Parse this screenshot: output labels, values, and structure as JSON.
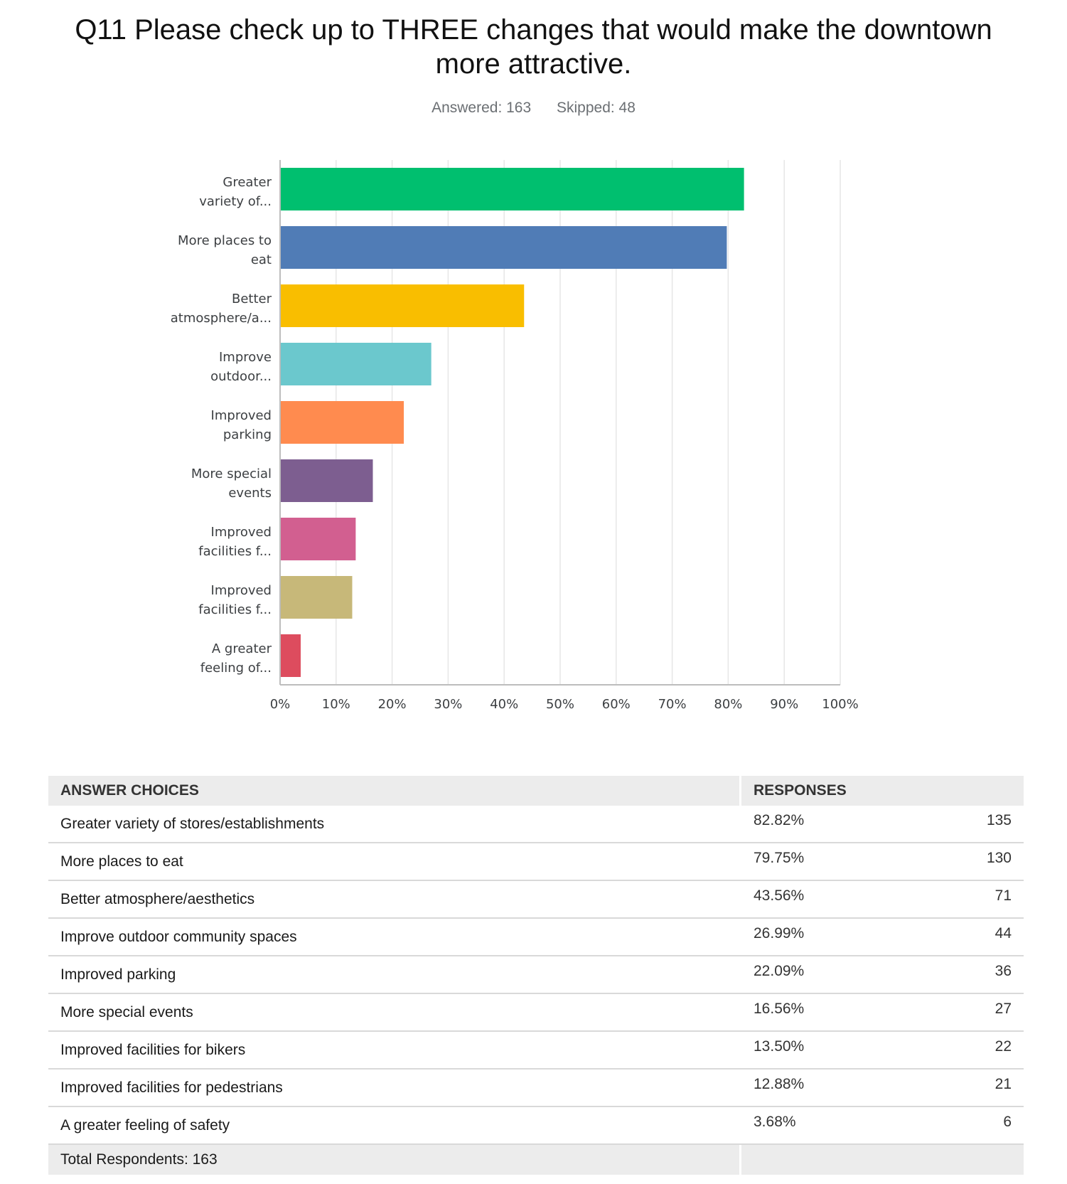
{
  "header": {
    "title_line1": "Q11 Please check up to THREE changes that would make the downtown",
    "title_line2": "more attractive.",
    "answered": "Answered: 163",
    "skipped": "Skipped: 48"
  },
  "chart_data": {
    "type": "bar",
    "orientation": "horizontal",
    "title": "Q11 Please check up to THREE changes that would make the downtown more attractive.",
    "categories": [
      [
        "Greater",
        "variety of..."
      ],
      [
        "More places to",
        "eat"
      ],
      [
        "Better",
        "atmosphere/a..."
      ],
      [
        "Improve",
        "outdoor..."
      ],
      [
        "Improved",
        "parking"
      ],
      [
        "More special",
        "events"
      ],
      [
        "Improved",
        "facilities f..."
      ],
      [
        "Improved",
        "facilities f..."
      ],
      [
        "A greater",
        "feeling of..."
      ]
    ],
    "values": [
      82.82,
      79.75,
      43.56,
      26.99,
      22.09,
      16.56,
      13.5,
      12.88,
      3.68
    ],
    "colors": [
      "#00bf6f",
      "#507cb6",
      "#f9be00",
      "#6bc8cd",
      "#ff8b4f",
      "#7d5e90",
      "#d25f90",
      "#c7b879",
      "#dd4c5e"
    ],
    "xlim": [
      0,
      100
    ],
    "xticks": [
      "0%",
      "10%",
      "20%",
      "30%",
      "40%",
      "50%",
      "60%",
      "70%",
      "80%",
      "90%",
      "100%"
    ],
    "grid": true,
    "xlabel": "",
    "ylabel": ""
  },
  "table": {
    "headers": {
      "choices": "ANSWER CHOICES",
      "responses": "RESPONSES"
    },
    "rows": [
      {
        "choice": "Greater variety of stores/establishments",
        "percent": "82.82%",
        "count": "135"
      },
      {
        "choice": "More places to eat",
        "percent": "79.75%",
        "count": "130"
      },
      {
        "choice": "Better atmosphere/aesthetics",
        "percent": "43.56%",
        "count": "71"
      },
      {
        "choice": "Improve outdoor community spaces",
        "percent": "26.99%",
        "count": "44"
      },
      {
        "choice": "Improved parking",
        "percent": "22.09%",
        "count": "36"
      },
      {
        "choice": "More special events",
        "percent": "16.56%",
        "count": "27"
      },
      {
        "choice": "Improved facilities for bikers",
        "percent": "13.50%",
        "count": "22"
      },
      {
        "choice": "Improved facilities for pedestrians",
        "percent": "12.88%",
        "count": "21"
      },
      {
        "choice": "A greater feeling of safety",
        "percent": "3.68%",
        "count": "6"
      }
    ],
    "total": "Total Respondents: 163"
  }
}
